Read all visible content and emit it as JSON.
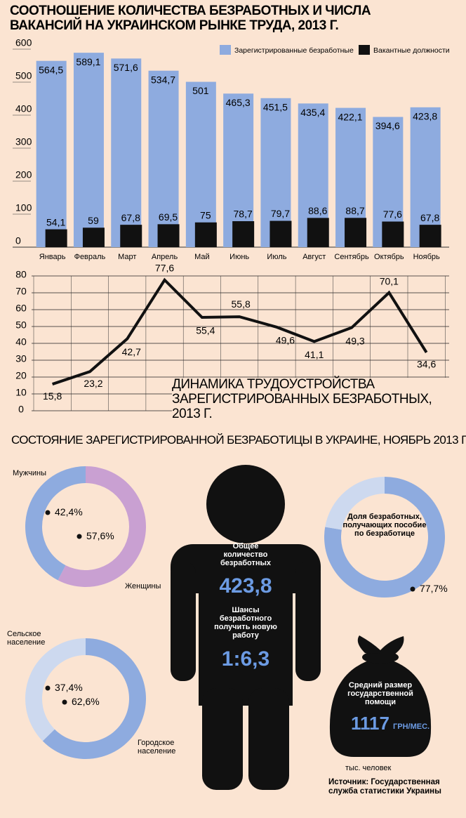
{
  "chart_data": [
    {
      "type": "bar",
      "title": "СООТНОШЕНИЕ КОЛИЧЕСТВА БЕЗРАБОТНЫХ И ЧИСЛА ВАКАНСИЙ НА УКРАИНСКОМ РЫНКЕ ТРУДА, 2013 Г.",
      "categories": [
        "Январь",
        "Февраль",
        "Март",
        "Апрель",
        "Май",
        "Июнь",
        "Июль",
        "Август",
        "Сентябрь",
        "Октябрь",
        "Ноябрь"
      ],
      "series": [
        {
          "name": "Зарегистрированные безработные",
          "color": "#8eabdf",
          "values": [
            564.5,
            589.1,
            571.6,
            534.7,
            501,
            465.3,
            451.5,
            435.4,
            422.1,
            394.6,
            423.8
          ],
          "value_labels": [
            "564,5",
            "589,1",
            "571,6",
            "534,7",
            "501",
            "465,3",
            "451,5",
            "435,4",
            "422,1",
            "394,6",
            "423,8"
          ]
        },
        {
          "name": "Вакантные должности",
          "color": "#111111",
          "values": [
            54.1,
            59,
            67.8,
            69.5,
            75,
            78.7,
            79.7,
            88.6,
            88.7,
            77.6,
            67.8
          ],
          "value_labels": [
            "54,1",
            "59",
            "67,8",
            "69,5",
            "75",
            "78,7",
            "79,7",
            "88,6",
            "88,7",
            "77,6",
            "67,8"
          ]
        }
      ],
      "ylim": [
        0,
        600
      ],
      "yticks": [
        0,
        100,
        200,
        300,
        400,
        500,
        600
      ],
      "legend": "top-right"
    },
    {
      "type": "line",
      "title": "ДИНАМИКА ТРУДОУСТРОЙСТВА ЗАРЕГИСТРИРОВАННЫХ БЕЗРАБОТНЫХ, 2013 Г.",
      "categories": [
        null,
        null,
        null,
        null,
        null,
        null,
        null,
        null,
        null,
        null,
        null
      ],
      "series": [
        {
          "color": "#111111",
          "values": [
            15.8,
            23.2,
            42.7,
            77.6,
            55.4,
            55.8,
            49.6,
            41.1,
            49.3,
            70.1,
            34.6
          ],
          "value_labels": [
            "15,8",
            "23,2",
            "42,7",
            "77,6",
            "55,4",
            "55,8",
            "49,6",
            "41,1",
            "49,3",
            "70,1",
            "34,6"
          ]
        }
      ],
      "ylim": [
        0,
        80
      ],
      "yticks": [
        0,
        10,
        20,
        30,
        40,
        50,
        60,
        70,
        80
      ],
      "grid": true
    },
    {
      "type": "donut",
      "categories": [
        "Женщины",
        "Мужчины"
      ],
      "values": [
        57.6,
        42.4
      ],
      "value_labels": [
        "57,6%",
        "42,4%"
      ],
      "colors": [
        "#c9a0d2",
        "#8eabdf"
      ]
    },
    {
      "type": "donut",
      "categories": [
        "Городское население",
        "Сельское население"
      ],
      "values": [
        62.6,
        37.4
      ],
      "value_labels": [
        "62,6%",
        "37,4%"
      ],
      "colors": [
        "#8eabdf",
        "#cdd9ef"
      ]
    },
    {
      "type": "donut",
      "title": "Доля безработных, получающих пособие по безработице",
      "values": [
        77.7,
        22.3
      ],
      "value_labels": [
        "77,7%",
        null
      ],
      "colors": [
        "#8eabdf",
        "#cdd9ef"
      ]
    }
  ],
  "section_title": "СОСТОЯНИЕ ЗАРЕГИСТРИРОВАННОЙ БЕЗРАБОТИЦЫ В УКРАИНЕ, НОЯБРЬ 2013 Г.",
  "figure": {
    "total_label": "Общее количество безработных",
    "total": "423,8",
    "chances_label": "Шансы безработного получить новую работу",
    "chances": "1:6,3"
  },
  "bag": {
    "label": "Средний размер государственной помощи",
    "amount": "1117",
    "unit": "ГРН/МЕС."
  },
  "footer": {
    "units": "тыс. человек",
    "source": "Источник: Государственная служба статистики Украины"
  }
}
